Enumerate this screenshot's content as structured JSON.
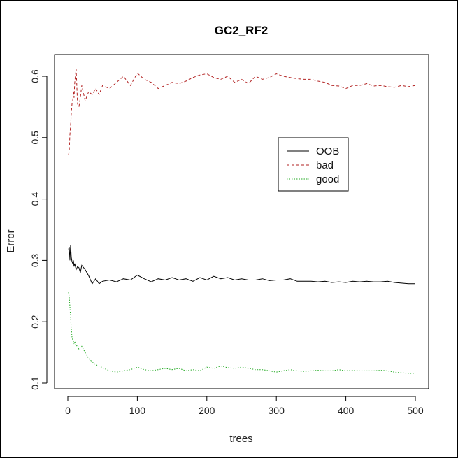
{
  "chart_data": {
    "type": "line",
    "title": "GC2_RF2",
    "xlabel": "trees",
    "ylabel": "Error",
    "xlim": [
      0,
      500
    ],
    "ylim": [
      0.1,
      0.6
    ],
    "xticks": [
      0,
      100,
      200,
      300,
      400,
      500
    ],
    "yticks": [
      0.1,
      0.2,
      0.3,
      0.4,
      0.5,
      0.6
    ],
    "xtick_labels": [
      "0",
      "100",
      "200",
      "300",
      "400",
      "500"
    ],
    "ytick_labels": [
      "0.1",
      "0.2",
      "0.3",
      "0.4",
      "0.5",
      "0.6"
    ],
    "legend_position": "top-right",
    "x": [
      1,
      2,
      3,
      4,
      5,
      6,
      7,
      8,
      9,
      10,
      12,
      14,
      16,
      18,
      20,
      25,
      30,
      35,
      40,
      45,
      50,
      60,
      70,
      80,
      90,
      100,
      110,
      120,
      130,
      140,
      150,
      160,
      170,
      180,
      190,
      200,
      210,
      220,
      230,
      240,
      250,
      260,
      270,
      280,
      290,
      300,
      310,
      320,
      330,
      340,
      350,
      360,
      370,
      380,
      390,
      400,
      410,
      420,
      430,
      440,
      450,
      460,
      470,
      480,
      490,
      500
    ],
    "series": [
      {
        "name": "OOB",
        "color": "#000000",
        "dash": "solid",
        "values": [
          0.318,
          0.322,
          0.3,
          0.325,
          0.305,
          0.298,
          0.295,
          0.3,
          0.29,
          0.295,
          0.285,
          0.29,
          0.288,
          0.28,
          0.292,
          0.285,
          0.275,
          0.262,
          0.27,
          0.262,
          0.266,
          0.268,
          0.265,
          0.27,
          0.268,
          0.276,
          0.27,
          0.265,
          0.27,
          0.268,
          0.272,
          0.268,
          0.27,
          0.266,
          0.272,
          0.268,
          0.274,
          0.27,
          0.272,
          0.268,
          0.27,
          0.268,
          0.268,
          0.27,
          0.267,
          0.268,
          0.268,
          0.27,
          0.266,
          0.266,
          0.266,
          0.265,
          0.266,
          0.264,
          0.265,
          0.264,
          0.266,
          0.265,
          0.266,
          0.265,
          0.265,
          0.266,
          0.264,
          0.263,
          0.262,
          0.262
        ]
      },
      {
        "name": "bad",
        "color": "#b22222",
        "dash": "dashed",
        "values": [
          0.472,
          0.478,
          0.505,
          0.52,
          0.54,
          0.555,
          0.56,
          0.575,
          0.565,
          0.59,
          0.612,
          0.555,
          0.55,
          0.565,
          0.585,
          0.56,
          0.575,
          0.57,
          0.58,
          0.57,
          0.585,
          0.58,
          0.59,
          0.6,
          0.585,
          0.605,
          0.595,
          0.59,
          0.58,
          0.585,
          0.59,
          0.588,
          0.592,
          0.598,
          0.602,
          0.604,
          0.598,
          0.595,
          0.6,
          0.59,
          0.595,
          0.588,
          0.6,
          0.595,
          0.598,
          0.604,
          0.6,
          0.598,
          0.596,
          0.595,
          0.595,
          0.592,
          0.59,
          0.585,
          0.584,
          0.58,
          0.585,
          0.585,
          0.588,
          0.584,
          0.585,
          0.583,
          0.582,
          0.585,
          0.583,
          0.585
        ]
      },
      {
        "name": "good",
        "color": "#22aa22",
        "dash": "dotted",
        "values": [
          0.248,
          0.24,
          0.225,
          0.205,
          0.188,
          0.175,
          0.17,
          0.168,
          0.165,
          0.168,
          0.16,
          0.162,
          0.155,
          0.158,
          0.16,
          0.15,
          0.14,
          0.135,
          0.13,
          0.128,
          0.125,
          0.12,
          0.118,
          0.12,
          0.122,
          0.126,
          0.122,
          0.12,
          0.122,
          0.124,
          0.122,
          0.124,
          0.12,
          0.122,
          0.12,
          0.126,
          0.124,
          0.128,
          0.125,
          0.124,
          0.126,
          0.124,
          0.122,
          0.122,
          0.12,
          0.118,
          0.12,
          0.122,
          0.12,
          0.119,
          0.12,
          0.121,
          0.12,
          0.12,
          0.122,
          0.12,
          0.121,
          0.12,
          0.12,
          0.12,
          0.121,
          0.12,
          0.118,
          0.117,
          0.116,
          0.116
        ]
      }
    ]
  }
}
